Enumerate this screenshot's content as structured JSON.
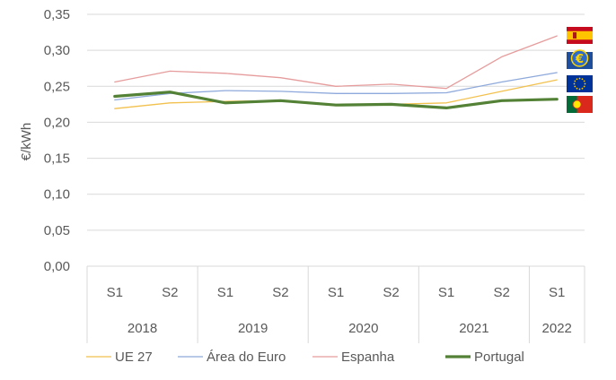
{
  "chart_data": {
    "type": "line",
    "ylabel": "€/kWh",
    "xlabel": "",
    "title": "",
    "ylim": [
      0,
      0.35
    ],
    "y_ticks": [
      "0,00",
      "0,05",
      "0,10",
      "0,15",
      "0,20",
      "0,25",
      "0,30",
      "0,35"
    ],
    "grid": "horizontal",
    "categories": [
      "S1",
      "S2",
      "S1",
      "S2",
      "S1",
      "S2",
      "S1",
      "S2",
      "S1"
    ],
    "years": [
      {
        "label": "2018",
        "span": 2
      },
      {
        "label": "2019",
        "span": 2
      },
      {
        "label": "2020",
        "span": 2
      },
      {
        "label": "2021",
        "span": 2
      },
      {
        "label": "2022",
        "span": 1
      }
    ],
    "series": [
      {
        "name": "UE 27",
        "color": "#F2C14E",
        "width": 1.3,
        "values": [
          0.219,
          0.227,
          0.229,
          0.23,
          0.223,
          0.225,
          0.227,
          0.243,
          0.259
        ]
      },
      {
        "name": "Área do Euro",
        "color": "#8EA9DB",
        "width": 1.3,
        "values": [
          0.231,
          0.24,
          0.244,
          0.243,
          0.24,
          0.24,
          0.241,
          0.256,
          0.269
        ]
      },
      {
        "name": "Espanha",
        "color": "#E69C9C",
        "width": 1.3,
        "values": [
          0.256,
          0.271,
          0.268,
          0.262,
          0.25,
          0.253,
          0.247,
          0.291,
          0.32
        ]
      },
      {
        "name": "Portugal",
        "color": "#538135",
        "width": 3.2,
        "values": [
          0.236,
          0.242,
          0.227,
          0.23,
          0.224,
          0.225,
          0.22,
          0.23,
          0.232
        ]
      }
    ],
    "legend_position": "bottom",
    "flags": [
      {
        "name": "flag-spain-icon",
        "series": "Espanha"
      },
      {
        "name": "flag-euro-area-icon",
        "series": "Área do Euro"
      },
      {
        "name": "flag-eu-icon",
        "series": "UE 27"
      },
      {
        "name": "flag-portugal-icon",
        "series": "Portugal"
      }
    ]
  }
}
